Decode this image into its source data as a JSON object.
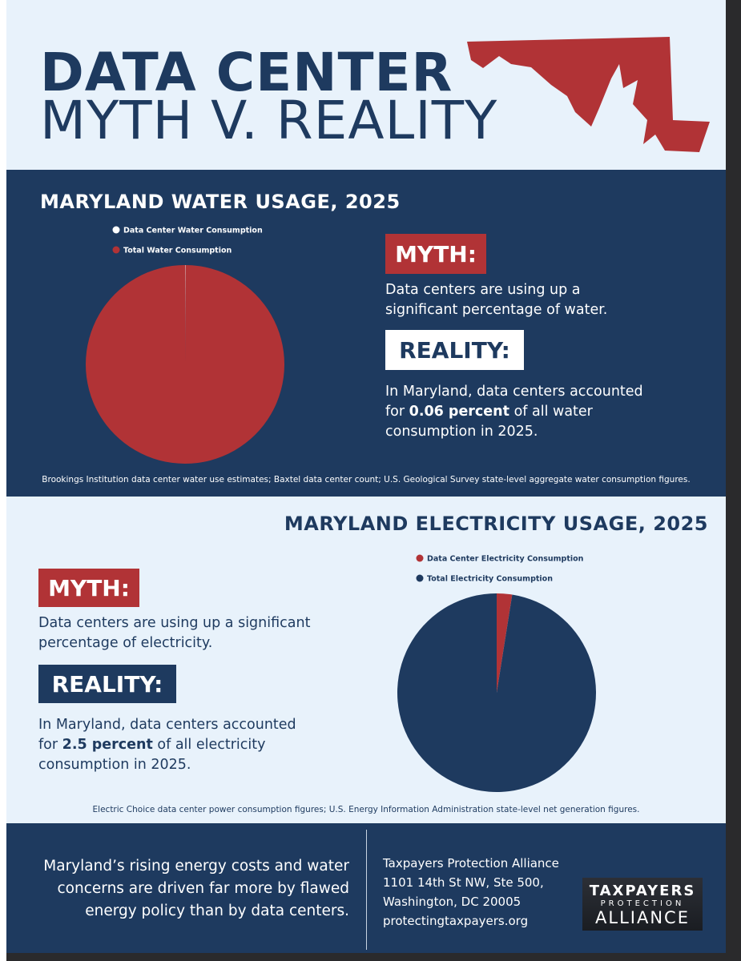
{
  "header": {
    "title_line1": "DATA CENTER",
    "title_line2": "MYTH V. REALITY"
  },
  "chart_data": [
    {
      "type": "pie",
      "title": "MARYLAND WATER USAGE, 2025",
      "categories": [
        "Data Center Water Consumption",
        "Total Water Consumption"
      ],
      "values": [
        0.06,
        99.94
      ],
      "colors": [
        "#ffffff",
        "#b13336"
      ]
    },
    {
      "type": "pie",
      "title": "MARYLAND ELECTRICITY USAGE, 2025",
      "categories": [
        "Data Center Electricity Consumption",
        "Total Electricity Consumption"
      ],
      "values": [
        2.5,
        97.5
      ],
      "colors": [
        "#b13336",
        "#1e3a5f"
      ]
    }
  ],
  "water": {
    "myth_label": "MYTH:",
    "myth_text": "Data centers are using up a significant percentage of water.",
    "reality_label": "REALITY:",
    "reality_before": "In Maryland, data centers accounted for ",
    "reality_bold": "0.06 percent",
    "reality_after": " of all water consumption in 2025.",
    "source": "Brookings Institution data center water use estimates; Baxtel data center count; U.S. Geological Survey state-level aggregate water consumption figures."
  },
  "electricity": {
    "myth_label": "MYTH:",
    "myth_text": "Data centers are using up a significant percentage of electricity.",
    "reality_label": "REALITY:",
    "reality_before": "In Maryland, data centers accounted for ",
    "reality_bold": "2.5 percent",
    "reality_after": " of all electricity consumption in 2025.",
    "source": "Electric Choice data center power consumption figures; U.S. Energy Information Administration state-level net generation figures."
  },
  "footer": {
    "statement": "Maryland’s rising energy costs and water concerns are driven far more by flawed energy policy than by data centers.",
    "address": [
      "Taxpayers Protection Alliance",
      "1101 14th St NW, Ste 500,",
      "Washington, DC 20005",
      "protectingtaxpayers.org"
    ],
    "logo": [
      "TAXPAYERS",
      "PROTECTION",
      "ALLIANCE"
    ]
  }
}
